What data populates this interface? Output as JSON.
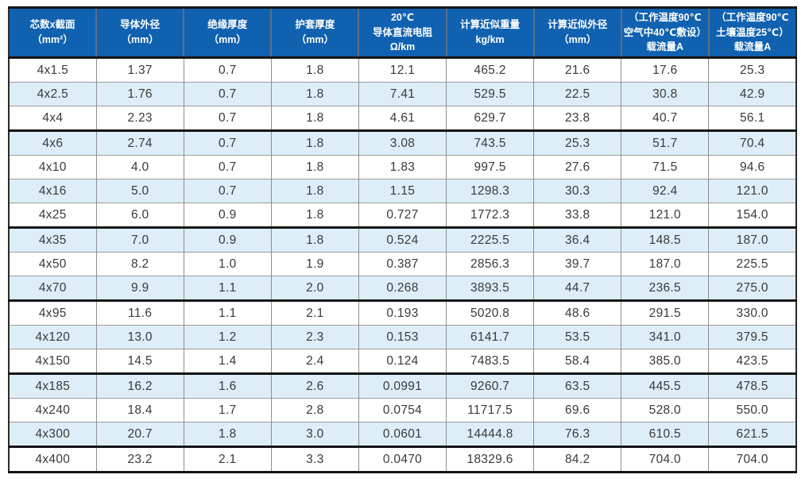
{
  "colors": {
    "header_bg": "#1061b0",
    "header_text": "#ffffff",
    "alt_row_bg": "#ddeef8",
    "thick_border": "#141414",
    "thin_border": "#9b9b9b",
    "body_text": "#3a3a3a"
  },
  "table": {
    "columns": [
      {
        "id": "core-count-section",
        "lines": [
          "芯数x截面",
          "（mm²）"
        ]
      },
      {
        "id": "conductor-outer-diameter",
        "lines": [
          "导体外径",
          "（mm）"
        ]
      },
      {
        "id": "insulation-thickness",
        "lines": [
          "绝缘厚度",
          "（mm）"
        ]
      },
      {
        "id": "sheath-thickness",
        "lines": [
          "护套厚度",
          "（mm）"
        ]
      },
      {
        "id": "dc-resistance-20c",
        "lines": [
          "20℃",
          "导体直流电阻",
          "Ω/km"
        ]
      },
      {
        "id": "approx-weight",
        "lines": [
          "计算近似重量",
          "kg/km"
        ]
      },
      {
        "id": "approx-outer-diameter",
        "lines": [
          "计算近似外径",
          "（mm）"
        ]
      },
      {
        "id": "ampacity-air",
        "lines": [
          "（工作温度90℃",
          "空气中40℃敷设）",
          "载流量A"
        ]
      },
      {
        "id": "ampacity-soil",
        "lines": [
          "（工作温度90℃",
          "土壤温度25℃）",
          "载流量A"
        ]
      }
    ],
    "rows": [
      [
        "4x1.5",
        "1.37",
        "0.7",
        "1.8",
        "12.1",
        "465.2",
        "21.6",
        "17.6",
        "25.3"
      ],
      [
        "4x2.5",
        "1.76",
        "0.7",
        "1.8",
        "7.41",
        "529.5",
        "22.5",
        "30.8",
        "42.9"
      ],
      [
        "4x4",
        "2.23",
        "0.7",
        "1.8",
        "4.61",
        "629.7",
        "23.8",
        "40.7",
        "56.1"
      ],
      [
        "4x6",
        "2.74",
        "0.7",
        "1.8",
        "3.08",
        "743.5",
        "25.3",
        "51.7",
        "70.4"
      ],
      [
        "4x10",
        "4.0",
        "0.7",
        "1.8",
        "1.83",
        "997.5",
        "27.6",
        "71.5",
        "94.6"
      ],
      [
        "4x16",
        "5.0",
        "0.7",
        "1.8",
        "1.15",
        "1298.3",
        "30.3",
        "92.4",
        "121.0"
      ],
      [
        "4x25",
        "6.0",
        "0.9",
        "1.8",
        "0.727",
        "1772.3",
        "33.8",
        "121.0",
        "154.0"
      ],
      [
        "4x35",
        "7.0",
        "0.9",
        "1.8",
        "0.524",
        "2225.5",
        "36.4",
        "148.5",
        "187.0"
      ],
      [
        "4x50",
        "8.2",
        "1.0",
        "1.9",
        "0.387",
        "2856.3",
        "39.7",
        "187.0",
        "225.5"
      ],
      [
        "4x70",
        "9.9",
        "1.1",
        "2.0",
        "0.268",
        "3893.5",
        "44.7",
        "236.5",
        "275.0"
      ],
      [
        "4x95",
        "11.6",
        "1.1",
        "2.1",
        "0.193",
        "5020.8",
        "48.6",
        "291.5",
        "330.0"
      ],
      [
        "4x120",
        "13.0",
        "1.2",
        "2.3",
        "0.153",
        "6141.7",
        "53.5",
        "341.0",
        "379.5"
      ],
      [
        "4x150",
        "14.5",
        "1.4",
        "2.4",
        "0.124",
        "7483.5",
        "58.4",
        "385.0",
        "423.5"
      ],
      [
        "4x185",
        "16.2",
        "1.6",
        "2.6",
        "0.0991",
        "9260.7",
        "63.5",
        "445.5",
        "478.5"
      ],
      [
        "4x240",
        "18.4",
        "1.7",
        "2.8",
        "0.0754",
        "11717.5",
        "69.6",
        "528.0",
        "550.0"
      ],
      [
        "4x300",
        "20.7",
        "1.8",
        "3.0",
        "0.0601",
        "14444.8",
        "76.3",
        "610.5",
        "621.5"
      ],
      [
        "4x400",
        "23.2",
        "2.1",
        "3.3",
        "0.0470",
        "18329.6",
        "84.2",
        "704.0",
        "704.0"
      ]
    ],
    "group_end_rows": [
      2,
      6,
      9,
      12,
      15
    ]
  }
}
